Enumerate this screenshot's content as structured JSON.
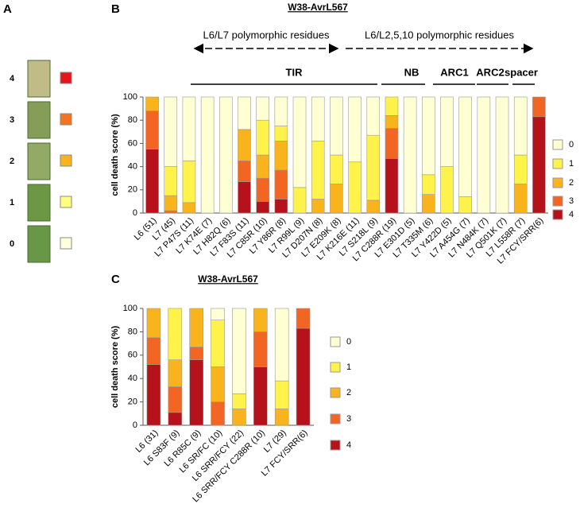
{
  "panel_a": {
    "label": "A",
    "scores": [
      "4",
      "3",
      "2",
      "1",
      "0"
    ],
    "colors": [
      "#e8141c",
      "#f47321",
      "#f9b31c",
      "#ffff80",
      "#ffffe0"
    ]
  },
  "chart_data": [
    {
      "type": "bar",
      "stacked": true,
      "panel": "B",
      "title": "W38-AvrL567",
      "ylabel": "cell death score (%)",
      "categories": [
        "L6 (51)",
        "L7 (45)",
        "L7 P47S (11)",
        "L7 K74E (7)",
        "L7 H82Q (6)",
        "L7 F83S (11)",
        "L7 C85R (10)",
        "L7 Y86R (8)",
        "L7 R99L (9)",
        "L7 D207N (8)",
        "L7 E209K (8)",
        "L7 K216E (11)",
        "L7 S218L (9)",
        "L7 C288R (19)",
        "L7 E301D (5)",
        "L7 T335M (6)",
        "L7 Y422D (5)",
        "L7 A454G (7)",
        "L7 N484K (7)",
        "L7 Q501K (7)",
        "L7 L558R (7)",
        "L7 FCY/SRR(6)"
      ],
      "series": [
        {
          "name": "4",
          "color": "#b5121b",
          "values": [
            55,
            0,
            0,
            0,
            0,
            27,
            10,
            12,
            0,
            0,
            0,
            0,
            0,
            47,
            0,
            0,
            0,
            0,
            0,
            0,
            0,
            83
          ]
        },
        {
          "name": "3",
          "color": "#f26522",
          "values": [
            33,
            2,
            0,
            0,
            0,
            18,
            20,
            25,
            0,
            0,
            0,
            0,
            0,
            26,
            0,
            0,
            0,
            0,
            0,
            0,
            0,
            17
          ]
        },
        {
          "name": "2",
          "color": "#f9b31c",
          "values": [
            12,
            13,
            9,
            0,
            0,
            27,
            20,
            25,
            0,
            12,
            25,
            0,
            11,
            11,
            0,
            16,
            0,
            0,
            0,
            0,
            25,
            0
          ]
        },
        {
          "name": "1",
          "color": "#fff24a",
          "values": [
            0,
            25,
            36,
            0,
            0,
            0,
            30,
            13,
            22,
            50,
            25,
            44,
            56,
            16,
            0,
            17,
            40,
            14,
            0,
            0,
            25,
            0
          ]
        },
        {
          "name": "0",
          "color": "#ffffd4",
          "values": [
            0,
            60,
            55,
            100,
            100,
            28,
            20,
            25,
            78,
            38,
            50,
            56,
            33,
            0,
            100,
            67,
            60,
            86,
            100,
            100,
            50,
            0
          ]
        }
      ],
      "ylim": [
        0,
        100
      ],
      "yticks": [
        0,
        20,
        40,
        60,
        80,
        100
      ],
      "grid": false,
      "arrows": [
        "L6/L7 polymorphic residues",
        "L6/L2,5,10 polymorphic residues"
      ],
      "domains": [
        "TIR",
        "NB",
        "ARC1",
        "ARC2",
        "spacer"
      ]
    },
    {
      "type": "bar",
      "stacked": true,
      "panel": "C",
      "title": "W38-AvrL567",
      "ylabel": "cell death score (%)",
      "categories": [
        "L6 (31)",
        "L6 S83F (9)",
        "L6 R85C (9)",
        "L6 SR/FC (10)",
        "L6 SRR/FCY (22)",
        "L6 SRR/FCY C288R (10)",
        "L7 (29)",
        "L7 FCY/SRR(6)"
      ],
      "series": [
        {
          "name": "4",
          "color": "#b5121b",
          "values": [
            52,
            11,
            56,
            0,
            0,
            50,
            0,
            83
          ]
        },
        {
          "name": "3",
          "color": "#f26522",
          "values": [
            23,
            22,
            11,
            20,
            0,
            30,
            0,
            17
          ]
        },
        {
          "name": "2",
          "color": "#f9b31c",
          "values": [
            25,
            23,
            33,
            30,
            14,
            20,
            14,
            0
          ]
        },
        {
          "name": "1",
          "color": "#fff24a",
          "values": [
            0,
            44,
            0,
            40,
            13,
            0,
            24,
            0
          ]
        },
        {
          "name": "0",
          "color": "#ffffd4",
          "values": [
            0,
            0,
            0,
            10,
            73,
            0,
            62,
            0
          ]
        }
      ],
      "ylim": [
        0,
        100
      ],
      "yticks": [
        0,
        20,
        40,
        60,
        80,
        100
      ],
      "grid": false
    }
  ]
}
